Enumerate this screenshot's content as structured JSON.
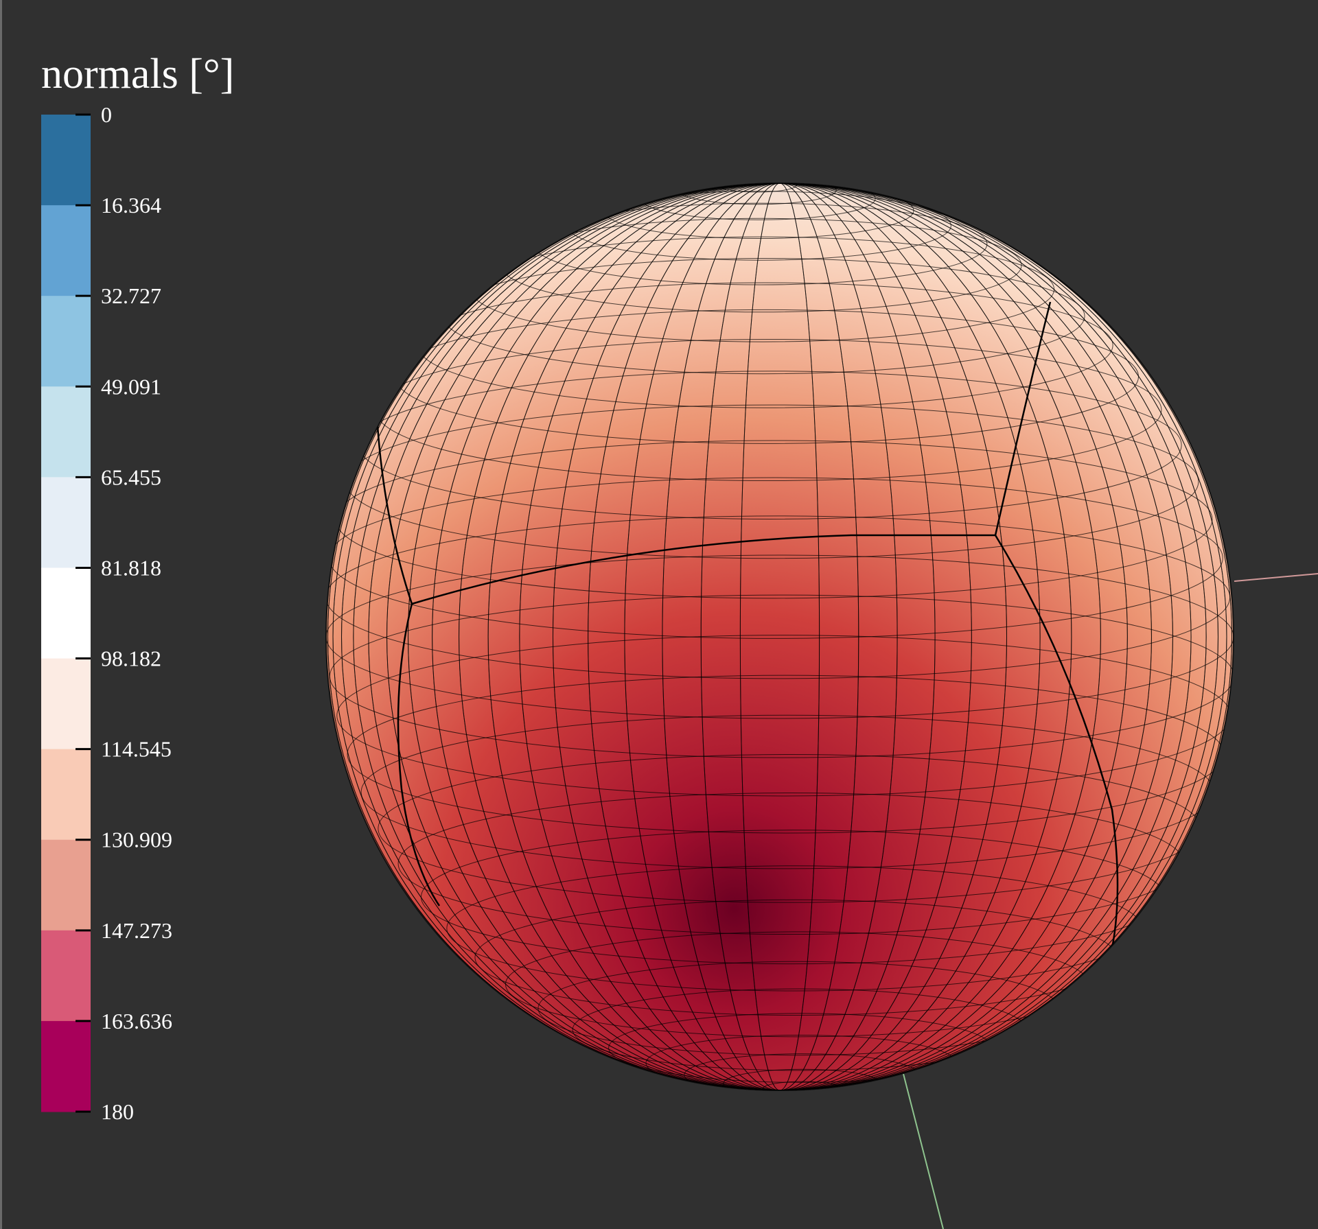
{
  "legend": {
    "title": "normals [°]",
    "ticks": [
      "0",
      "16.364",
      "32.727",
      "49.091",
      "65.455",
      "81.818",
      "98.182",
      "114.545",
      "130.909",
      "147.273",
      "163.636",
      "180"
    ],
    "colors": [
      "#2b6f9e",
      "#62a3d3",
      "#8ec4e2",
      "#c5e2ed",
      "#e6eef6",
      "#ffffff",
      "#fcebe3",
      "#f9cbb6",
      "#e8a090",
      "#d95a77",
      "#a8005a"
    ]
  }
}
